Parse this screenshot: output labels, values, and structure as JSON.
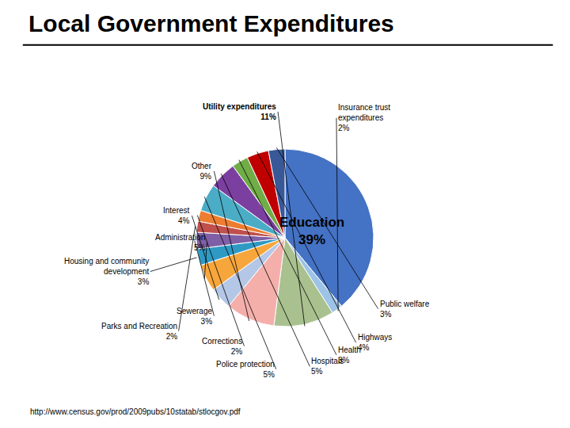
{
  "chart_data": {
    "type": "pie",
    "title": "Local Government Expenditures",
    "categories": [
      "Education",
      "Insurance trust\nexpenditures",
      "Utility expenditures",
      "Other",
      "Interest",
      "Administration",
      "Housing and community\ndevelopment",
      "Sewerage",
      "Parks and Recreation",
      "Corrections",
      "Police protection",
      "Hospitals",
      "Health",
      "Highways",
      "Public welfare"
    ],
    "values": [
      39,
      2,
      11,
      9,
      4,
      5,
      3,
      3,
      2,
      2,
      5,
      5,
      3,
      4,
      3
    ],
    "value_labels": [
      "39%",
      "2%",
      "11%",
      "9%",
      "4%",
      "5%",
      "3%",
      "3%",
      "2%",
      "2%",
      "5%",
      "5%",
      "3%",
      "4%",
      "3%"
    ],
    "colors": [
      "#4472C4",
      "#9DC3E6",
      "#A9C18F",
      "#F4AFAB",
      "#B4C7E7",
      "#F7A63C",
      "#2E9AC4",
      "#7F5FA6",
      "#C0504D",
      "#ED7D31",
      "#4BACC6",
      "#7B3FA0",
      "#70AD47",
      "#C00000",
      "#385898"
    ],
    "annotations": [
      "http://www.census.gov/prod/2009pubs/10statab/stlocgov.pdf"
    ]
  }
}
